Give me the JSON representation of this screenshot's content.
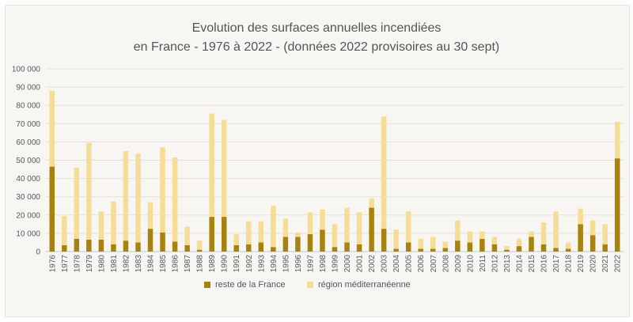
{
  "chart_data": {
    "type": "bar",
    "stacked": true,
    "title": "Evolution des surfaces annuelles incendiées",
    "subtitle": "en France - 1976 à 2022 - (données 2022 provisoires au 30 sept)",
    "xlabel": "",
    "ylabel": "",
    "ylim": [
      0,
      100000
    ],
    "yticks": [
      "0",
      "10 000",
      "20 000",
      "30 000",
      "40 000",
      "50 000",
      "60 000",
      "70 000",
      "80 000",
      "90 000",
      "100 000"
    ],
    "grid": true,
    "legend_position": "bottom",
    "categories": [
      "1976",
      "1977",
      "1978",
      "1979",
      "1980",
      "1981",
      "1982",
      "1983",
      "1984",
      "1985",
      "1986",
      "1987",
      "1988",
      "1989",
      "1990",
      "1991",
      "1992",
      "1993",
      "1994",
      "1995",
      "1996",
      "1997",
      "1998",
      "1999",
      "2000",
      "2001",
      "2002",
      "2003",
      "2004",
      "2005",
      "2006",
      "2007",
      "2008",
      "2009",
      "2010",
      "2011",
      "2012",
      "2013",
      "2014",
      "2015",
      "2016",
      "2017",
      "2018",
      "2019",
      "2020",
      "2021",
      "2022"
    ],
    "series": [
      {
        "name": "reste de la France",
        "color": "#a8820f",
        "values": [
          46500,
          3500,
          7000,
          6500,
          6500,
          4000,
          6000,
          5000,
          12500,
          10500,
          5500,
          3500,
          1000,
          19000,
          19000,
          3500,
          4000,
          5000,
          2500,
          8000,
          8000,
          9500,
          12000,
          2500,
          5000,
          4000,
          24000,
          12500,
          1500,
          5000,
          1500,
          1500,
          2000,
          6000,
          5000,
          7000,
          4000,
          1000,
          3000,
          8000,
          4000,
          2000,
          1500,
          15000,
          9000,
          4000,
          51000
        ]
      },
      {
        "name": "région méditerranéenne",
        "color": "#f5dd97",
        "values": [
          41500,
          16000,
          39000,
          53000,
          15500,
          23500,
          49000,
          48500,
          14500,
          46500,
          46000,
          10000,
          5000,
          56500,
          53000,
          6000,
          12500,
          11500,
          22500,
          10000,
          2500,
          12000,
          11000,
          12500,
          19000,
          17500,
          5000,
          61500,
          10500,
          17000,
          5500,
          6500,
          3500,
          11000,
          6000,
          4000,
          4000,
          2000,
          4000,
          3000,
          12000,
          20000,
          3500,
          8500,
          8000,
          11000,
          20000
        ]
      }
    ]
  }
}
